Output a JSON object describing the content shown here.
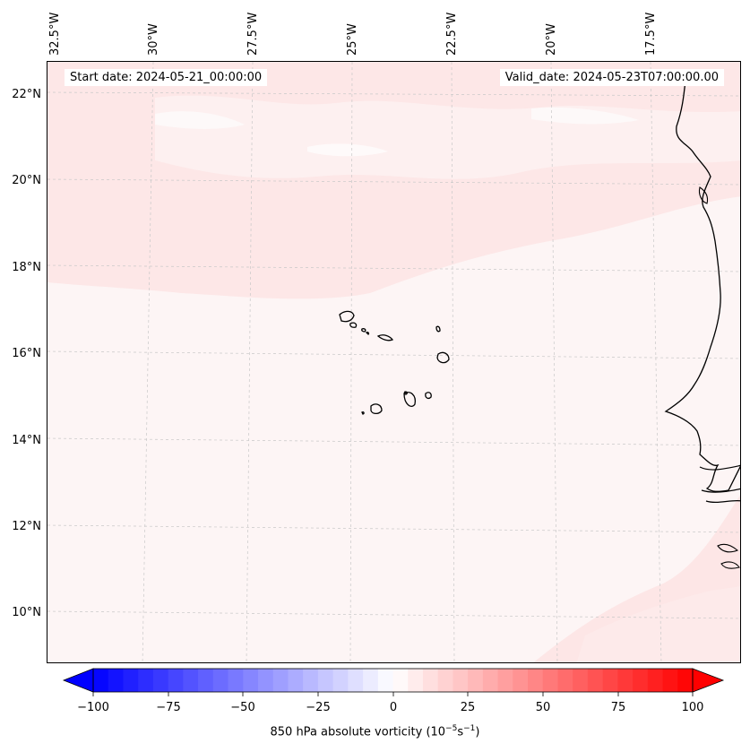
{
  "info": {
    "start_date": "Start date: 2024-05-21_00:00:00",
    "valid_date": "Valid_date: 2024-05-23T07:00:00.00"
  },
  "axes": {
    "lon_labels": [
      "32.5°W",
      "30°W",
      "27.5°W",
      "25°W",
      "22.5°W",
      "20°W",
      "17.5°W"
    ],
    "lat_labels": [
      "22°N",
      "20°N",
      "18°N",
      "16°N",
      "14°N",
      "12°N",
      "10°N"
    ]
  },
  "map": {
    "extent": {
      "lon_min": -33.5,
      "lon_max": -16.2,
      "lat_min": 8.9,
      "lat_max": 22.8
    },
    "background_color": "#fdf5f5",
    "coastline_color": "#000000",
    "grid": true
  },
  "colorbar": {
    "min": -100,
    "max": 100,
    "colormap": "bwr",
    "tick_labels": [
      "−100",
      "−75",
      "−50",
      "−25",
      "0",
      "25",
      "50",
      "75",
      "100"
    ],
    "title_prefix": "850 hPa absolute vorticity (10",
    "title_exp1": "−5",
    "title_mid": "s",
    "title_exp2": "−1",
    "title_suffix": ")"
  }
}
